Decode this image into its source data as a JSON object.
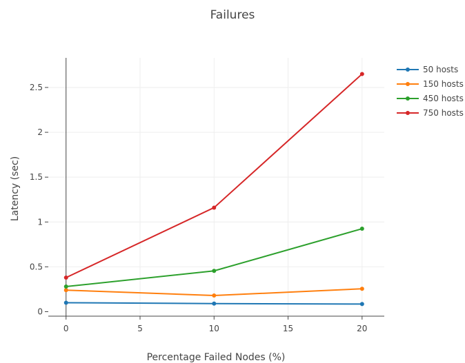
{
  "chart_data": {
    "type": "line",
    "title": "Failures",
    "xlabel": "Percentage Failed Nodes (%)",
    "ylabel": "Latency (sec)",
    "x": [
      0,
      10,
      20
    ],
    "xlim": [
      -1.2,
      21.5
    ],
    "ylim": [
      -0.05,
      2.83
    ],
    "xticks": [
      0,
      5,
      10,
      15,
      20
    ],
    "yticks": [
      0,
      0.5,
      1,
      1.5,
      2,
      2.5
    ],
    "xtick_labels": [
      "0",
      "5",
      "10",
      "15",
      "20"
    ],
    "ytick_labels": [
      "0",
      "0.5",
      "1",
      "1.5",
      "2",
      "2.5"
    ],
    "grid": true,
    "legend_position": "top-right",
    "series": [
      {
        "name": "50 hosts",
        "color": "#1f77b4",
        "values": [
          0.1,
          0.09,
          0.085
        ]
      },
      {
        "name": "150 hosts",
        "color": "#ff7f0e",
        "values": [
          0.24,
          0.18,
          0.255
        ]
      },
      {
        "name": "450 hosts",
        "color": "#2ca02c",
        "values": [
          0.28,
          0.455,
          0.925
        ]
      },
      {
        "name": "750 hosts",
        "color": "#d62728",
        "values": [
          0.38,
          1.16,
          2.65
        ]
      }
    ]
  }
}
